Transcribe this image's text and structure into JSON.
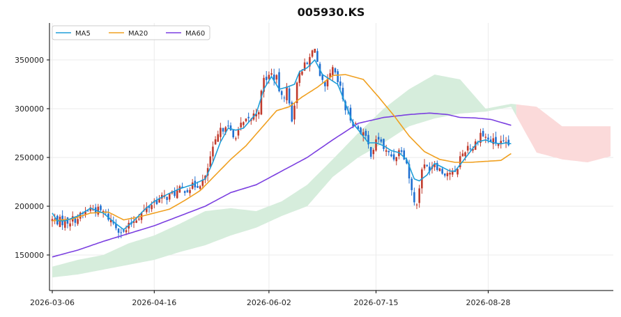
{
  "chart_data": {
    "type": "candlestick",
    "title": "005930.KS",
    "xlabel": "",
    "ylabel": "",
    "grid": true,
    "legend_position": "top-left",
    "x_ticks": [
      "2026-03-06",
      "2026-04-16",
      "2026-06-02",
      "2026-07-15",
      "2026-08-28"
    ],
    "y_ticks": [
      150000,
      200000,
      250000,
      300000,
      350000
    ],
    "y_tick_labels": [
      "150000",
      "200000",
      "250000",
      "300000",
      "350000"
    ],
    "ylim": [
      125000,
      375000
    ],
    "bars": 180,
    "projection_bars": 40,
    "colors": {
      "up": "#c0392b",
      "down": "#1f6fd1",
      "ma5": "#1f9ed8",
      "ma20": "#f0a020",
      "ma60": "#7b3fe0",
      "cloud_up": "#d6eddc",
      "cloud_down": "#fbdada"
    },
    "series": [
      {
        "name": "MA5",
        "color": "#1f9ed8"
      },
      {
        "name": "MA20",
        "color": "#f0a020"
      },
      {
        "name": "MA60",
        "color": "#7b3fe0"
      }
    ],
    "close_anchors": [
      [
        0,
        186000
      ],
      [
        5,
        184000
      ],
      [
        10,
        188000
      ],
      [
        15,
        198000
      ],
      [
        20,
        194000
      ],
      [
        25,
        180000
      ],
      [
        28,
        172000
      ],
      [
        32,
        186000
      ],
      [
        36,
        195000
      ],
      [
        40,
        205000
      ],
      [
        45,
        210000
      ],
      [
        50,
        216000
      ],
      [
        55,
        220000
      ],
      [
        58,
        224000
      ],
      [
        60,
        228000
      ],
      [
        62,
        250000
      ],
      [
        65,
        272000
      ],
      [
        68,
        285000
      ],
      [
        71,
        270000
      ],
      [
        74,
        282000
      ],
      [
        78,
        290000
      ],
      [
        81,
        300000
      ],
      [
        83,
        330000
      ],
      [
        86,
        335000
      ],
      [
        88,
        330000
      ],
      [
        90,
        310000
      ],
      [
        92,
        320000
      ],
      [
        94,
        290000
      ],
      [
        97,
        340000
      ],
      [
        100,
        345000
      ],
      [
        103,
        365000
      ],
      [
        105,
        330000
      ],
      [
        107,
        320000
      ],
      [
        110,
        340000
      ],
      [
        113,
        320000
      ],
      [
        115,
        300000
      ],
      [
        117,
        290000
      ],
      [
        120,
        280000
      ],
      [
        122,
        275000
      ],
      [
        125,
        255000
      ],
      [
        128,
        270000
      ],
      [
        131,
        255000
      ],
      [
        134,
        250000
      ],
      [
        137,
        260000
      ],
      [
        139,
        245000
      ],
      [
        141,
        215000
      ],
      [
        143,
        200000
      ],
      [
        145,
        240000
      ],
      [
        148,
        240000
      ],
      [
        150,
        245000
      ],
      [
        153,
        235000
      ],
      [
        156,
        235000
      ],
      [
        158,
        232000
      ],
      [
        160,
        250000
      ],
      [
        163,
        262000
      ],
      [
        165,
        260000
      ],
      [
        168,
        275000
      ],
      [
        171,
        268000
      ],
      [
        175,
        265000
      ],
      [
        178,
        262000
      ],
      [
        180,
        262000
      ]
    ],
    "ma5_anchors": [
      [
        0,
        193000
      ],
      [
        2,
        185000
      ],
      [
        5,
        185000
      ],
      [
        10,
        190000
      ],
      [
        15,
        198000
      ],
      [
        20,
        193000
      ],
      [
        25,
        182000
      ],
      [
        28,
        176000
      ],
      [
        32,
        185000
      ],
      [
        36,
        196000
      ],
      [
        40,
        205000
      ],
      [
        45,
        212000
      ],
      [
        50,
        218000
      ],
      [
        55,
        222000
      ],
      [
        60,
        228000
      ],
      [
        63,
        245000
      ],
      [
        66,
        266000
      ],
      [
        69,
        280000
      ],
      [
        72,
        278000
      ],
      [
        75,
        280000
      ],
      [
        80,
        295000
      ],
      [
        83,
        320000
      ],
      [
        86,
        333000
      ],
      [
        89,
        320000
      ],
      [
        92,
        322000
      ],
      [
        95,
        325000
      ],
      [
        97,
        338000
      ],
      [
        100,
        342000
      ],
      [
        103,
        350000
      ],
      [
        106,
        335000
      ],
      [
        109,
        330000
      ],
      [
        112,
        325000
      ],
      [
        115,
        305000
      ],
      [
        118,
        285000
      ],
      [
        121,
        275000
      ],
      [
        124,
        265000
      ],
      [
        127,
        265000
      ],
      [
        130,
        262000
      ],
      [
        133,
        257000
      ],
      [
        136,
        255000
      ],
      [
        139,
        248000
      ],
      [
        142,
        228000
      ],
      [
        144,
        226000
      ],
      [
        147,
        232000
      ],
      [
        150,
        244000
      ],
      [
        153,
        240000
      ],
      [
        156,
        236000
      ],
      [
        158,
        236000
      ],
      [
        161,
        246000
      ],
      [
        164,
        256000
      ],
      [
        167,
        266000
      ],
      [
        170,
        268000
      ],
      [
        173,
        265000
      ],
      [
        176,
        264000
      ],
      [
        178,
        265000
      ],
      [
        180,
        264000
      ]
    ],
    "ma20_anchors": [
      [
        0,
        185000
      ],
      [
        8,
        187000
      ],
      [
        15,
        193000
      ],
      [
        22,
        194000
      ],
      [
        28,
        186000
      ],
      [
        34,
        189000
      ],
      [
        40,
        193000
      ],
      [
        46,
        197000
      ],
      [
        52,
        206000
      ],
      [
        58,
        216000
      ],
      [
        64,
        232000
      ],
      [
        70,
        248000
      ],
      [
        76,
        262000
      ],
      [
        82,
        280000
      ],
      [
        88,
        298000
      ],
      [
        93,
        302000
      ],
      [
        98,
        312000
      ],
      [
        104,
        322000
      ],
      [
        110,
        334000
      ],
      [
        115,
        335000
      ],
      [
        122,
        330000
      ],
      [
        128,
        312000
      ],
      [
        134,
        293000
      ],
      [
        140,
        272000
      ],
      [
        146,
        256000
      ],
      [
        152,
        248000
      ],
      [
        158,
        245000
      ],
      [
        164,
        245000
      ],
      [
        170,
        246000
      ],
      [
        176,
        247000
      ],
      [
        180,
        254000
      ]
    ],
    "ma60_anchors": [
      [
        0,
        148000
      ],
      [
        10,
        155000
      ],
      [
        20,
        164000
      ],
      [
        30,
        172000
      ],
      [
        40,
        180000
      ],
      [
        50,
        190000
      ],
      [
        60,
        200000
      ],
      [
        70,
        214000
      ],
      [
        80,
        222000
      ],
      [
        90,
        236000
      ],
      [
        100,
        250000
      ],
      [
        110,
        268000
      ],
      [
        120,
        285000
      ],
      [
        130,
        291000
      ],
      [
        140,
        294000
      ],
      [
        148,
        295500
      ],
      [
        155,
        294000
      ],
      [
        160,
        291000
      ],
      [
        166,
        290500
      ],
      [
        172,
        289000
      ],
      [
        176,
        286000
      ],
      [
        180,
        283000
      ]
    ],
    "cloud_anchors": [
      [
        0,
        127000,
        138000
      ],
      [
        10,
        130000,
        145000
      ],
      [
        20,
        135000,
        150000
      ],
      [
        30,
        140000,
        162000
      ],
      [
        40,
        145000,
        170000
      ],
      [
        50,
        153000,
        182000
      ],
      [
        60,
        160000,
        195000
      ],
      [
        70,
        170000,
        198000
      ],
      [
        80,
        178000,
        195000
      ],
      [
        90,
        190000,
        205000
      ],
      [
        100,
        200000,
        222000
      ],
      [
        110,
        230000,
        248000
      ],
      [
        120,
        250000,
        275000
      ],
      [
        130,
        265000,
        300000
      ],
      [
        140,
        282000,
        320000
      ],
      [
        150,
        290000,
        335000
      ],
      [
        160,
        295000,
        330000
      ],
      [
        170,
        297000,
        300000
      ],
      [
        180,
        302000,
        305000
      ],
      [
        190,
        255000,
        302000
      ],
      [
        200,
        248000,
        282000
      ],
      [
        210,
        245000,
        282000
      ],
      [
        220,
        252000,
        282000
      ]
    ]
  }
}
